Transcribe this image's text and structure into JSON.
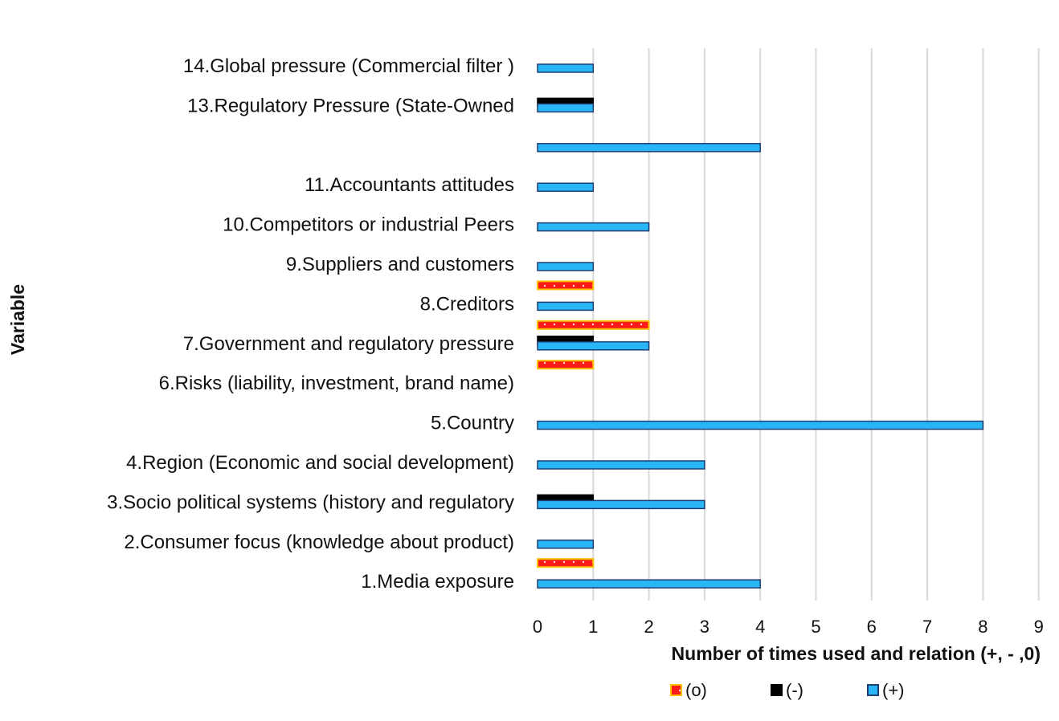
{
  "chart_data": {
    "type": "bar",
    "orientation": "horizontal",
    "xlabel": "Number of times used and relation (+, - ,0)",
    "ylabel": "Variable",
    "xlim": [
      0,
      9
    ],
    "xticks": [
      0,
      1,
      2,
      3,
      4,
      5,
      6,
      7,
      8,
      9
    ],
    "grid": "vertical",
    "legend_position": "bottom",
    "categories": [
      "1.Media exposure",
      "2.Consumer focus (knowledge about product)",
      "3.Socio political systems (history and regulatory",
      "4.Region (Economic and social development)",
      "5.Country",
      "6.Risks (liability,  investment, brand name)",
      "7.Government and regulatory  pressure",
      "8.Creditors",
      "9.Suppliers and customers",
      "10.Competitors or industrial Peers",
      "11.Accountants attitudes",
      "",
      "13.Regulatory Pressure (State-Owned",
      "14.Global  pressure (Commercial filter )"
    ],
    "series": [
      {
        "name": "(o)",
        "color": "#ff1a1a",
        "border": "#ffc000",
        "pattern": "dotted-fill",
        "values": [
          1,
          0,
          0,
          0,
          0,
          1,
          2,
          1,
          0,
          0,
          0,
          0,
          0,
          0
        ]
      },
      {
        "name": "(-)",
        "color": "#000000",
        "border": "#000000",
        "pattern": "solid",
        "values": [
          0,
          0,
          1,
          0,
          0,
          0,
          1,
          0,
          0,
          0,
          0,
          0,
          1,
          0
        ]
      },
      {
        "name": "(+)",
        "color": "#29b6f6",
        "border": "#1f3f73",
        "pattern": "solid",
        "values": [
          4,
          1,
          3,
          3,
          8,
          0,
          2,
          1,
          1,
          2,
          1,
          4,
          1,
          1
        ]
      }
    ]
  }
}
